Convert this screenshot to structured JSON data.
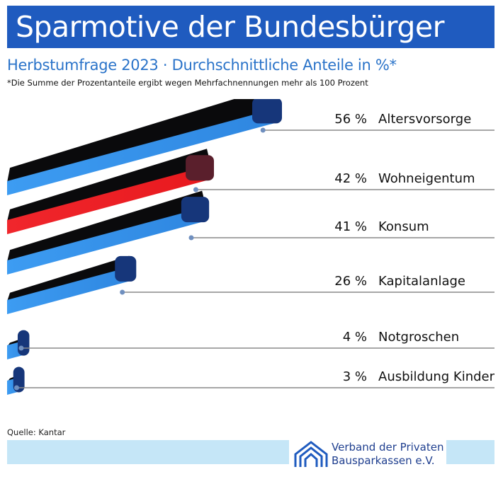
{
  "header": {
    "title": "Sparmotive der Bundesbürger",
    "subtitle": "Herbstumfrage 2023 · Durchschnittliche Anteile in %*",
    "footnote": "*Die Summe der Prozentanteile ergibt wegen Mehrfachnennungen mehr als 100 Prozent"
  },
  "source": "Quelle: Kantar",
  "logo": {
    "line1": "Verband der Privaten",
    "line2": "Bausparkassen e.V.",
    "icon": "house-logo-icon"
  },
  "colors": {
    "title_bar": "#1f5bbf",
    "subtitle": "#2a73c9",
    "bar_blue": "#2e86e0",
    "bar_blue_end": "#16367a",
    "bar_red": "#e8191e",
    "bar_red_end": "#5a1f2c",
    "footer_band": "#c5e6f7"
  },
  "chart_data": {
    "type": "bar",
    "orientation": "horizontal",
    "unit": "%",
    "categories": [
      "Altersvorsorge",
      "Wohneigentum",
      "Konsum",
      "Kapitalanlage",
      "Notgroschen",
      "Ausbildung Kinder"
    ],
    "values": [
      56,
      42,
      41,
      26,
      4,
      3
    ],
    "value_labels": [
      "56 %",
      "42 %",
      "41 %",
      "26 %",
      "4 %",
      "3 %"
    ],
    "highlight_index": 1,
    "xlim": [
      0,
      60
    ]
  }
}
